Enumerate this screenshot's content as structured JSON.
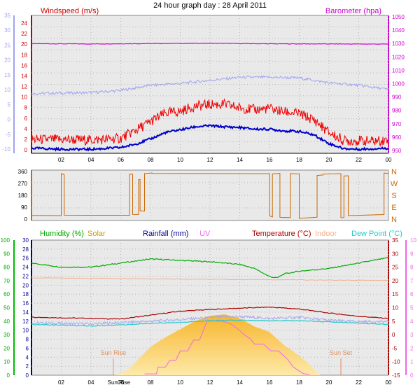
{
  "title": "24 hour graph day : 28 April 2011",
  "colors": {
    "wind_gust": "#ee0000",
    "wind_avg": "#0000cc",
    "wind_avg_axis": "#9fa3ee",
    "barometer": "#cc00cc",
    "direction": "#cc6600",
    "humidity": "#00aa00",
    "solar": "#f5b000",
    "rainfall": "#000099",
    "uv": "#ee66ee",
    "temperature": "#aa0000",
    "indoor": "#f0b090",
    "dew_point": "#22cccc",
    "panel_bg": "#e6e6e6"
  },
  "chart_data": [
    {
      "type": "line",
      "labels": {
        "left": "Windspeed (m/s)",
        "right": "Barometer (hpa)"
      },
      "x_ticks": [
        "02",
        "04",
        "06",
        "08",
        "10",
        "12",
        "14",
        "16",
        "18",
        "20",
        "22",
        "00"
      ],
      "axes": {
        "wind_avg_scale": {
          "ticks": [
            "35",
            "30",
            "25",
            "20",
            "15",
            "10",
            "5",
            "0",
            "-5",
            "-10"
          ],
          "range": [
            -10,
            35
          ]
        },
        "wind_gust_scale": {
          "ticks": [
            "24",
            "22",
            "20",
            "18",
            "16",
            "14",
            "12",
            "10",
            "8",
            "6",
            "4",
            "2",
            "0"
          ],
          "range": [
            0,
            24
          ]
        },
        "barometer_scale": {
          "ticks": [
            "1050",
            "1040",
            "1030",
            "1020",
            "1010",
            "1000",
            "990",
            "980",
            "970",
            "960",
            "950"
          ],
          "range": [
            950,
            1050
          ]
        }
      },
      "series": [
        {
          "key": "barometer",
          "axis": "barometer_scale",
          "hours": [
            0,
            4,
            8,
            12,
            16,
            20,
            24
          ],
          "values": [
            1029.5,
            1029.3,
            1029.6,
            1029.8,
            1029.4,
            1029.3,
            1029.2
          ]
        },
        {
          "key": "wind_gust_scaled",
          "axis": "wind_avg_scale",
          "hours": [
            0,
            4,
            6,
            8,
            10,
            12,
            14,
            16,
            18,
            20,
            22,
            24
          ],
          "values": [
            9.5,
            9.8,
            10.5,
            12.2,
            12.8,
            13.8,
            14.8,
            14.8,
            14.6,
            13.0,
            12.2,
            10.8
          ]
        },
        {
          "key": "wind_gust",
          "axis": "wind_gust_scale",
          "hours": [
            0,
            2,
            4,
            6,
            7,
            8,
            9,
            10,
            11,
            12,
            13,
            14,
            15,
            16,
            17,
            18,
            19,
            20,
            21,
            22,
            23,
            24
          ],
          "values": [
            2.4,
            2.4,
            2.3,
            2.6,
            4.0,
            5.5,
            7.0,
            7.3,
            8.2,
            8.5,
            8.5,
            7.9,
            7.6,
            7.8,
            7.2,
            6.9,
            5.8,
            3.6,
            2.2,
            2.2,
            2.1,
            2.3
          ]
        },
        {
          "key": "wind_avg",
          "axis": "wind_gust_scale",
          "hours": [
            0,
            2,
            4,
            6,
            7,
            8,
            9,
            10,
            11,
            12,
            13,
            14,
            15,
            16,
            17,
            18,
            19,
            20,
            21,
            22,
            23,
            24
          ],
          "values": [
            0.9,
            0.7,
            0.7,
            1.0,
            1.6,
            2.5,
            3.6,
            4.1,
            4.6,
            4.8,
            4.6,
            4.5,
            4.2,
            4.2,
            3.9,
            3.8,
            3.2,
            1.7,
            0.8,
            0.7,
            0.8,
            0.9
          ]
        }
      ]
    },
    {
      "type": "line",
      "labels": {
        "left": "",
        "right": ""
      },
      "axes": {
        "direction_scale": {
          "ticks": [
            "360",
            "270",
            "180",
            "90",
            "0"
          ],
          "range": [
            0,
            360
          ]
        },
        "compass": [
          "N",
          "W",
          "S",
          "E",
          "N"
        ]
      },
      "series": [
        {
          "key": "direction",
          "axis": "direction_scale",
          "hours": [
            0,
            2.0,
            2.0,
            2.2,
            2.2,
            6.6,
            6.6,
            6.8,
            6.8,
            7.2,
            7.2,
            7.3,
            7.3,
            7.6,
            7.6,
            8.1,
            8.1,
            16.0,
            16.0,
            16.2,
            16.2,
            16.7,
            16.7,
            17.4,
            17.4,
            18.0,
            18.0,
            19.2,
            19.2,
            19.6,
            19.6,
            20.8,
            20.8,
            21.0,
            21.0,
            21.3,
            21.3,
            23.7,
            23.7,
            24
          ],
          "values": [
            30,
            30,
            340,
            340,
            30,
            30,
            340,
            340,
            30,
            30,
            300,
            300,
            60,
            60,
            350,
            350,
            340,
            340,
            20,
            20,
            340,
            340,
            10,
            10,
            345,
            345,
            10,
            10,
            330,
            330,
            340,
            340,
            10,
            10,
            330,
            330,
            30,
            30,
            345,
            345
          ]
        }
      ]
    },
    {
      "type": "line",
      "labels": {
        "humidity": "Humidity (%)",
        "solar": "Solar",
        "rainfall": "Rainfall (mm)",
        "uv": "UV",
        "temperature": "Temperature (°C)",
        "indoor": "Indoor",
        "dew_point": "Dew Point (°C)"
      },
      "x_ticks": [
        "02",
        "04",
        "Sun Rise",
        "06",
        "08",
        "10",
        "12",
        "14",
        "16",
        "18",
        "20",
        "22",
        "00"
      ],
      "annotations": [
        {
          "text": "Sun Rise",
          "hour": 5.5
        },
        {
          "text": "Sun Set",
          "hour": 20.8
        }
      ],
      "axes": {
        "humidity_scale": {
          "ticks": [
            "100",
            "90",
            "80",
            "70",
            "60",
            "50",
            "40",
            "30",
            "20",
            "10",
            "0"
          ],
          "range": [
            0,
            100
          ]
        },
        "rainfall_scale": {
          "ticks": [
            "30",
            "28",
            "26",
            "24",
            "22",
            "20",
            "18",
            "16",
            "14",
            "12",
            "10",
            "8",
            "6",
            "4",
            "2",
            "0"
          ],
          "range": [
            0,
            30
          ]
        },
        "temperature_scale": {
          "ticks": [
            "35",
            "30",
            "25",
            "20",
            "15",
            "10",
            "5",
            "0",
            "-5",
            "-10",
            "-15"
          ],
          "range": [
            -15,
            35
          ]
        },
        "uv_scale": {
          "ticks": [
            "10",
            "9",
            "8",
            "7",
            "6",
            "5",
            "4",
            "3",
            "2",
            "1",
            "0"
          ],
          "range": [
            0,
            10
          ]
        }
      },
      "series": [
        {
          "key": "humidity",
          "axis": "humidity_scale",
          "hours": [
            0,
            2,
            4,
            6,
            8,
            10,
            12,
            14,
            15,
            16,
            16.5,
            17,
            18,
            20,
            22,
            24
          ],
          "values": [
            83,
            80,
            80,
            83,
            86,
            85,
            84,
            82,
            79,
            73,
            72,
            75,
            77,
            79,
            83,
            87
          ]
        },
        {
          "key": "indoor",
          "axis": "temperature_scale",
          "hours": [
            0,
            6,
            12,
            18,
            24
          ],
          "values": [
            21.0,
            20.8,
            20.5,
            20.3,
            20.0
          ]
        },
        {
          "key": "temperature",
          "axis": "temperature_scale",
          "hours": [
            0,
            4,
            6,
            8,
            10,
            12,
            14,
            16,
            18,
            20,
            22,
            24
          ],
          "values": [
            6.5,
            6.0,
            5.8,
            7.2,
            8.7,
            9.3,
            9.8,
            10.2,
            9.5,
            8.0,
            6.8,
            6.0
          ]
        },
        {
          "key": "dew_point",
          "axis": "temperature_scale",
          "hours": [
            0,
            4,
            6,
            8,
            10,
            12,
            14,
            16,
            18,
            20,
            22,
            24
          ],
          "values": [
            3.8,
            3.2,
            3.6,
            4.2,
            4.5,
            5.2,
            5.3,
            5.2,
            5.2,
            4.7,
            4.2,
            3.8
          ]
        },
        {
          "key": "rainfall_line",
          "axis": "temperature_scale",
          "hours": [
            0,
            4,
            6,
            8,
            10,
            12,
            14,
            16,
            18,
            20,
            22,
            24
          ],
          "values": [
            4.3,
            4.0,
            4.4,
            5.0,
            5.6,
            6.3,
            6.7,
            6.0,
            6.4,
            5.3,
            4.8,
            4.8
          ]
        },
        {
          "key": "solar",
          "axis": "temperature_scale",
          "fill": true,
          "hours": [
            5.6,
            6.5,
            7.2,
            8.0,
            9.0,
            10.0,
            11.0,
            12.0,
            13.0,
            14.0,
            15.0,
            16.0,
            17.0,
            17.8,
            18.5,
            19.0,
            19.4,
            19.6
          ],
          "values": [
            -15,
            -13,
            -9,
            -4.5,
            -1,
            2,
            5,
            7,
            7.5,
            6,
            3,
            1,
            -4,
            -7,
            -10,
            -13,
            -15,
            -15
          ]
        },
        {
          "key": "uv",
          "axis": "temperature_scale",
          "hours": [
            7.6,
            8.4,
            8.5,
            9.0,
            9.3,
            9.7,
            10.0,
            10.5,
            10.9,
            11.3,
            11.8,
            12.8,
            13.4,
            13.9,
            14.3,
            14.7,
            15.0,
            15.6,
            16.1,
            16.6,
            17.2,
            17.6,
            18.3,
            18.5,
            18.7
          ],
          "values": [
            -14.5,
            -14.5,
            -12,
            -12,
            -9.5,
            -9.5,
            -6,
            -6,
            -2,
            -2,
            5,
            5,
            4,
            2,
            0,
            -1.5,
            -3.5,
            -3.5,
            -6,
            -6,
            -9,
            -12,
            -14.5,
            -14.5,
            -15
          ]
        }
      ]
    }
  ]
}
